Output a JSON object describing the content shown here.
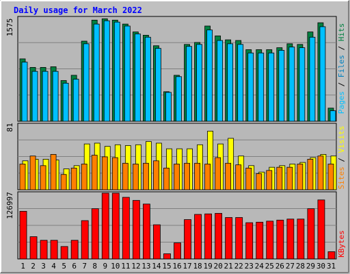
{
  "chart_data": [
    {
      "type": "bar",
      "title": "Daily usage for March 2022",
      "panel": "top",
      "y_axis_max_label": "1575",
      "ylim": [
        0,
        1575
      ],
      "categories": [
        "1",
        "2",
        "3",
        "4",
        "5",
        "6",
        "7",
        "8",
        "9",
        "10",
        "11",
        "12",
        "13",
        "14",
        "15",
        "16",
        "17",
        "18",
        "19",
        "20",
        "21",
        "22",
        "23",
        "24",
        "25",
        "26",
        "27",
        "28",
        "29",
        "30",
        "31"
      ],
      "weekend_days": [
        "5",
        "6",
        "12",
        "13",
        "19",
        "20",
        "26",
        "27"
      ],
      "grid": true,
      "legend": "right-vertical",
      "legend_labels": [
        "Pages",
        "Files",
        "Hits"
      ],
      "series": [
        {
          "name": "Hits",
          "color": "#008040",
          "values": [
            950,
            820,
            820,
            830,
            620,
            700,
            1220,
            1540,
            1560,
            1540,
            1480,
            1360,
            1310,
            1150,
            450,
            700,
            1170,
            1200,
            1450,
            1300,
            1240,
            1230,
            1090,
            1090,
            1090,
            1120,
            1180,
            1170,
            1360,
            1500,
            200
          ]
        },
        {
          "name": "Files",
          "color": "#00c0ff",
          "values": [
            900,
            760,
            760,
            760,
            580,
            640,
            1180,
            1480,
            1530,
            1510,
            1450,
            1330,
            1280,
            1110,
            440,
            680,
            1140,
            1170,
            1390,
            1230,
            1180,
            1170,
            1040,
            1040,
            1040,
            1080,
            1130,
            1120,
            1280,
            1440,
            160
          ]
        }
      ]
    },
    {
      "type": "bar",
      "panel": "middle",
      "y_axis_max_label": "81",
      "ylim": [
        0,
        81
      ],
      "categories": [
        "1",
        "2",
        "3",
        "4",
        "5",
        "6",
        "7",
        "8",
        "9",
        "10",
        "11",
        "12",
        "13",
        "14",
        "15",
        "16",
        "17",
        "18",
        "19",
        "20",
        "21",
        "22",
        "23",
        "24",
        "25",
        "26",
        "27",
        "28",
        "29",
        "30",
        "31"
      ],
      "grid": true,
      "legend": "right-vertical",
      "legend_labels": [
        "Sites",
        "Visits"
      ],
      "series": [
        {
          "name": "Visits",
          "color": "#ffff00",
          "values": [
            36,
            38,
            38,
            37,
            26,
            30,
            57,
            58,
            54,
            56,
            55,
            56,
            60,
            58,
            51,
            51,
            51,
            56,
            73,
            57,
            64,
            42,
            30,
            22,
            28,
            30,
            32,
            34,
            40,
            44,
            42
          ]
        },
        {
          "name": "Sites",
          "color": "#ff8000",
          "values": [
            32,
            42,
            30,
            44,
            19,
            27,
            32,
            43,
            41,
            40,
            33,
            32,
            33,
            36,
            27,
            32,
            33,
            33,
            32,
            40,
            33,
            31,
            27,
            20,
            24,
            28,
            28,
            32,
            38,
            42,
            32
          ]
        }
      ]
    },
    {
      "type": "bar",
      "panel": "bottom",
      "y_axis_max_label": "126997",
      "ylim": [
        0,
        126997
      ],
      "categories": [
        "1",
        "2",
        "3",
        "4",
        "5",
        "6",
        "7",
        "8",
        "9",
        "10",
        "11",
        "12",
        "13",
        "14",
        "15",
        "16",
        "17",
        "18",
        "19",
        "20",
        "21",
        "22",
        "23",
        "24",
        "25",
        "26",
        "27",
        "28",
        "29",
        "30",
        "31"
      ],
      "grid": true,
      "legend": "right-vertical",
      "legend_labels": [
        "KBytes"
      ],
      "series": [
        {
          "name": "KBytes",
          "color": "#ff0000",
          "values": [
            92000,
            43000,
            36000,
            36000,
            24000,
            36000,
            74000,
            97000,
            126997,
            126997,
            119000,
            113000,
            106000,
            66000,
            10000,
            31000,
            76000,
            86000,
            87000,
            88000,
            80000,
            80000,
            70000,
            71000,
            73000,
            75000,
            77000,
            77000,
            97000,
            114000,
            14000
          ]
        }
      ]
    }
  ],
  "colors": {
    "background": "#c0c0c0",
    "plot_background": "#b8b8b8",
    "title": "#0000ff",
    "weekend_label": "#008040",
    "pages": "#00c0ff",
    "files": "#0080c0",
    "hits": "#008040",
    "sites": "#ff8000",
    "visits": "#ffff00",
    "kbytes": "#ff0000"
  }
}
